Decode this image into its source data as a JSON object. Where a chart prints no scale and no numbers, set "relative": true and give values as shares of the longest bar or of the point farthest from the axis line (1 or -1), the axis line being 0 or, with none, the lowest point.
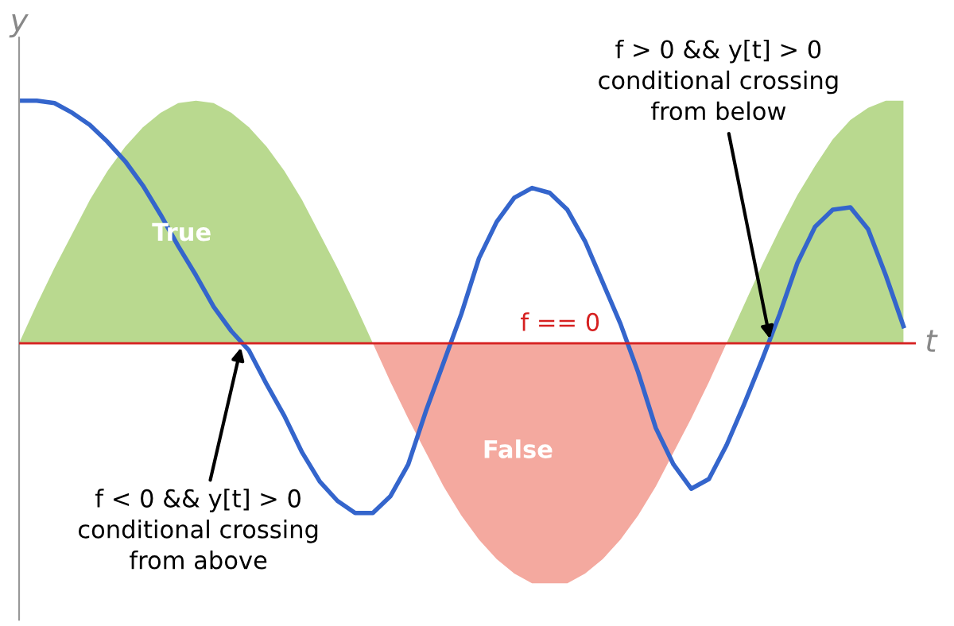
{
  "chart_data": {
    "type": "line",
    "relative": true,
    "xlabel": "t",
    "ylabel": "y",
    "categories": [
      null,
      null,
      null,
      null,
      null,
      null,
      null,
      null,
      null,
      null,
      null,
      null,
      null,
      null,
      null,
      null,
      null,
      null,
      null,
      null,
      null,
      null,
      null,
      null,
      null,
      null,
      null,
      null,
      null,
      null,
      null,
      null,
      null,
      null,
      null,
      null,
      null,
      null,
      null,
      null,
      null,
      null,
      null,
      null,
      null,
      null,
      null,
      null,
      null,
      null,
      null
    ],
    "series": [
      {
        "name": "True",
        "type": "area",
        "color": "#b9d98f",
        "values": [
          0,
          0.16,
          0.31,
          0.45,
          0.59,
          0.71,
          0.81,
          0.89,
          0.95,
          0.99,
          1,
          0.99,
          0.95,
          0.89,
          0.81,
          0.71,
          0.59,
          0.45,
          0.31,
          0.16,
          0,
          null,
          null,
          null,
          null,
          null,
          null,
          null,
          null,
          null,
          null,
          null,
          null,
          null,
          null,
          null,
          null,
          null,
          null,
          null,
          0,
          0.16,
          0.32,
          0.47,
          0.61,
          0.73,
          0.84,
          0.92,
          0.97,
          1,
          1
        ]
      },
      {
        "name": "False",
        "type": "area",
        "color": "#f4a99f",
        "values": [
          null,
          null,
          null,
          null,
          null,
          null,
          null,
          null,
          null,
          null,
          null,
          null,
          null,
          null,
          null,
          null,
          null,
          null,
          null,
          null,
          0,
          -0.16,
          -0.31,
          -0.45,
          -0.59,
          -0.71,
          -0.81,
          -0.89,
          -0.95,
          -0.99,
          -0.99,
          -0.99,
          -0.95,
          -0.89,
          -0.81,
          -0.71,
          -0.59,
          -0.45,
          -0.31,
          -0.16,
          0,
          null,
          null,
          null,
          null,
          null,
          null,
          null,
          null,
          null,
          null
        ]
      },
      {
        "color": "#3465cc",
        "values": [
          1,
          1,
          0.99,
          0.95,
          0.9,
          0.83,
          0.75,
          0.65,
          0.53,
          0.4,
          0.28,
          0.15,
          0.05,
          -0.03,
          -0.17,
          -0.3,
          -0.45,
          -0.57,
          -0.65,
          -0.7,
          -0.7,
          -0.63,
          -0.5,
          -0.28,
          -0.08,
          0.12,
          0.35,
          0.5,
          0.6,
          0.64,
          0.62,
          0.55,
          0.42,
          0.25,
          0.08,
          -0.12,
          -0.35,
          -0.5,
          -0.6,
          -0.56,
          -0.42,
          -0.25,
          -0.07,
          0.12,
          0.33,
          0.48,
          0.55,
          0.56,
          0.47,
          0.28,
          0.07
        ]
      }
    ],
    "ref_lines": [
      {
        "axis": "y",
        "value": 0,
        "label": "f == 0",
        "color": "#d62020"
      }
    ],
    "annotations": [
      "f < 0 && y[t] > 0\nconditional crossing\nfrom above",
      "f > 0 && y[t] > 0\nconditional crossing\nfrom below"
    ]
  }
}
